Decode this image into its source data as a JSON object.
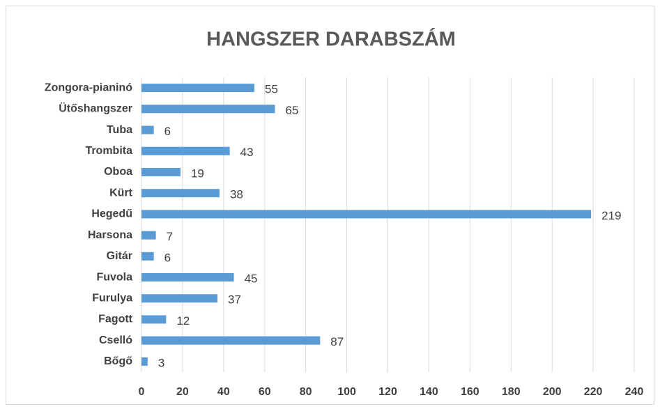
{
  "chart_data": {
    "type": "barh",
    "title": "HANGSZER DARABSZÁM",
    "categories": [
      "Zongora-pianinó",
      "Ütőshangszer",
      "Tuba",
      "Trombita",
      "Oboa",
      "Kürt",
      "Hegedű",
      "Harsona",
      "Gitár",
      "Fuvola",
      "Furulya",
      "Fagott",
      "Cselló",
      "Bőgő"
    ],
    "values": [
      55,
      65,
      6,
      43,
      19,
      38,
      219,
      7,
      6,
      45,
      37,
      12,
      87,
      3
    ],
    "color": "#5b9bd5",
    "xlim": [
      0,
      240
    ],
    "xticks": [
      0,
      20,
      40,
      60,
      80,
      100,
      120,
      140,
      160,
      180,
      200,
      220,
      240
    ],
    "grid": true
  }
}
